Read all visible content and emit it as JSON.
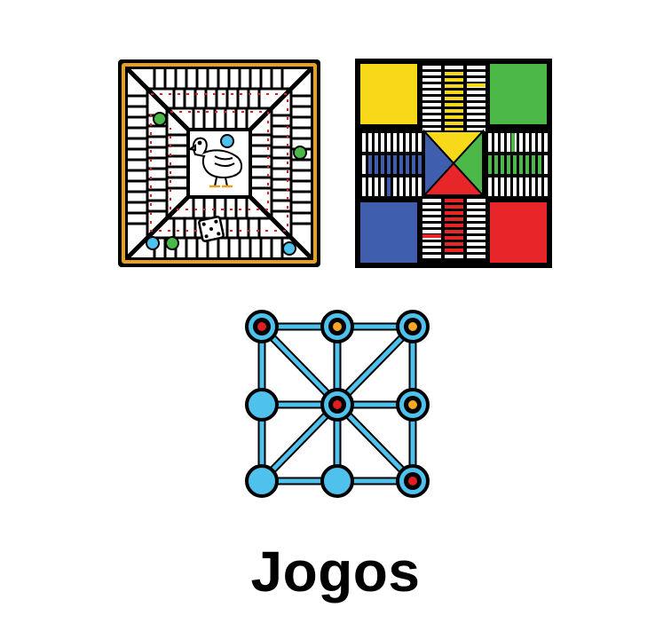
{
  "caption": {
    "text": "Jogos"
  },
  "pictograms": [
    {
      "id": "goose-board",
      "name": "goose-game-board-icon"
    },
    {
      "id": "ludo-board",
      "name": "ludo-board-icon"
    },
    {
      "id": "merrills-board",
      "name": "three-mens-morris-board-icon"
    }
  ],
  "colors": {
    "outline": "#000000",
    "goose_frame": "#e8a020",
    "track_red": "#e02020",
    "ludo_yellow": "#f7d91a",
    "ludo_green": "#4cb848",
    "ludo_blue": "#3f5fae",
    "ludo_red": "#e8262a",
    "merrills_line": "#4ec1ec",
    "piece_orange": "#f5a623",
    "piece_red": "#e02020",
    "token_green": "#4cb848",
    "token_blue": "#4ec1ec"
  }
}
